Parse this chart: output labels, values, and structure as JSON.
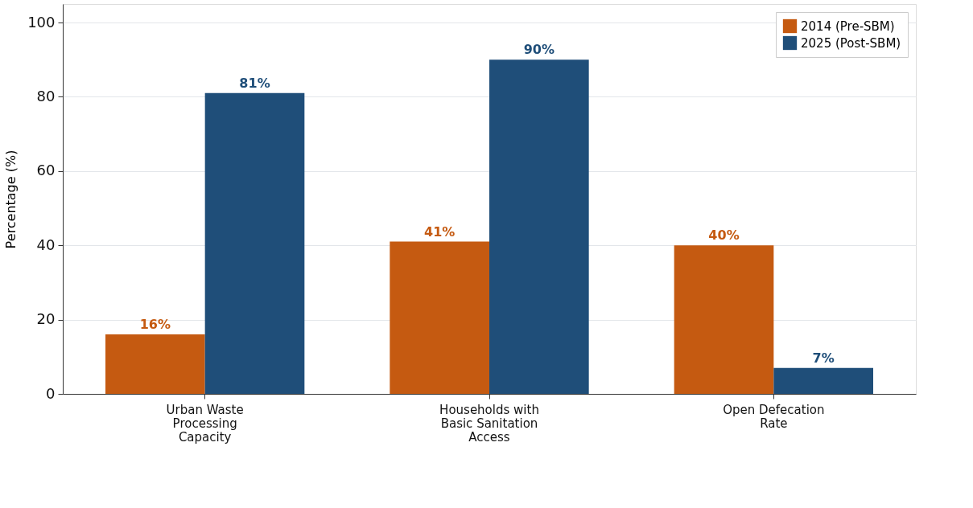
{
  "chart_data": {
    "type": "bar",
    "ylabel": "Percentage (%)",
    "categories": [
      "Urban Waste Processing Capacity",
      "Households with Basic Sanitation Access",
      "Open Defecation Rate"
    ],
    "series": [
      {
        "name": "2014 (Pre-SBM)",
        "color": "#c55a11",
        "values": [
          16,
          41,
          40
        ],
        "value_labels": [
          "16%",
          "41%",
          "40%"
        ]
      },
      {
        "name": "2025 (Post-SBM)",
        "color": "#1f4e79",
        "values": [
          81,
          90,
          7
        ],
        "value_labels": [
          "81%",
          "90%",
          "7%"
        ]
      }
    ],
    "ylim": [
      0,
      105
    ],
    "yticks": [
      0,
      20,
      40,
      60,
      80,
      100
    ],
    "grid": "y",
    "legend": "top right"
  }
}
